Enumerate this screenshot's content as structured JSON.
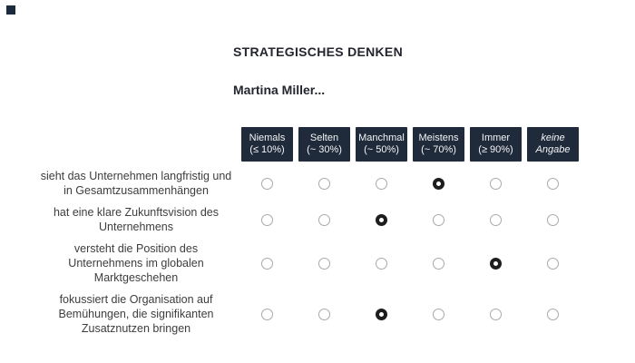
{
  "header": {
    "title": "STRATEGISCHES DENKEN",
    "subtitle": "Martina Miller..."
  },
  "matrix": {
    "columns": [
      {
        "label": "Niemals",
        "sublabel": "(≤ 10%)",
        "italic": false
      },
      {
        "label": "Selten",
        "sublabel": "(~ 30%)",
        "italic": false
      },
      {
        "label": "Manchmal",
        "sublabel": "(~ 50%)",
        "italic": false
      },
      {
        "label": "Meistens",
        "sublabel": "(~ 70%)",
        "italic": false
      },
      {
        "label": "Immer",
        "sublabel": "(≥ 90%)",
        "italic": false
      },
      {
        "label": "keine",
        "sublabel": "Angabe",
        "italic": true
      }
    ],
    "rows": [
      {
        "label": "sieht das Unternehmen langfristig und\nin Gesamtzusammenhängen",
        "selected": 3
      },
      {
        "label": "hat eine klare Zukunftsvision des\nUnternehmens",
        "selected": 2
      },
      {
        "label": "versteht die Position des\nUnternehmens im globalen\nMarktgeschehen",
        "selected": 4
      },
      {
        "label": "fokussiert die Organisation auf\nBemühungen, die signifikanten\nZusatznutzen bringen",
        "selected": 2
      }
    ]
  },
  "colors": {
    "header_bg": "#1f2a3a",
    "header_text": "#f4f5f7",
    "title_text": "#24262f",
    "row_label_text": "#3d3d3d",
    "radio_border": "#a9a9a9",
    "radio_selected": "#1d1d1d",
    "corner_square": "#1c2a3d"
  }
}
